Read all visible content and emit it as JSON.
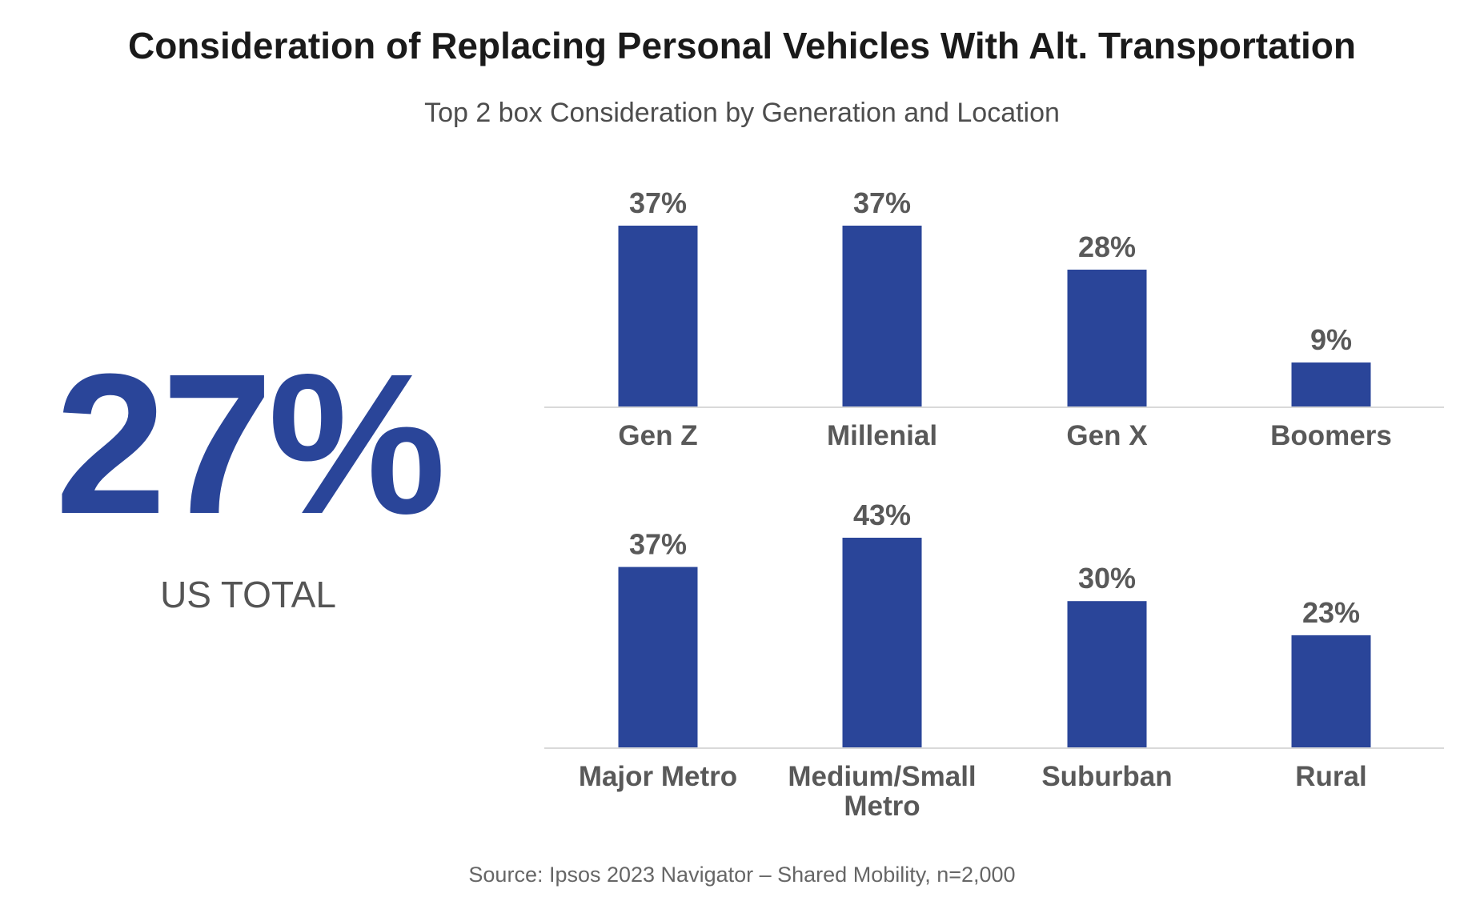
{
  "header": {
    "title": "Consideration of Replacing Personal Vehicles With Alt. Transportation",
    "subtitle": "Top 2 box Consideration by Generation and Location"
  },
  "total": {
    "value": "27%",
    "label": "US TOTAL"
  },
  "colors": {
    "bar": "#2a4599",
    "baseline": "#d9d9d9"
  },
  "chart_data": [
    {
      "type": "bar",
      "categories": [
        [
          "Gen Z"
        ],
        [
          "Millenial"
        ],
        [
          "Gen X"
        ],
        [
          "Boomers"
        ]
      ],
      "values": [
        37,
        37,
        28,
        9
      ],
      "labels": [
        "37%",
        "37%",
        "28%",
        "9%"
      ],
      "ylim": [
        0,
        37
      ]
    },
    {
      "type": "bar",
      "categories": [
        [
          "Major Metro"
        ],
        [
          "Medium/Small",
          "Metro"
        ],
        [
          "Suburban"
        ],
        [
          "Rural"
        ]
      ],
      "values": [
        37,
        43,
        30,
        23
      ],
      "labels": [
        "37%",
        "43%",
        "30%",
        "23%"
      ],
      "ylim": [
        0,
        43
      ]
    }
  ],
  "footer": {
    "source": "Source: Ipsos 2023 Navigator – Shared Mobility, n=2,000"
  }
}
